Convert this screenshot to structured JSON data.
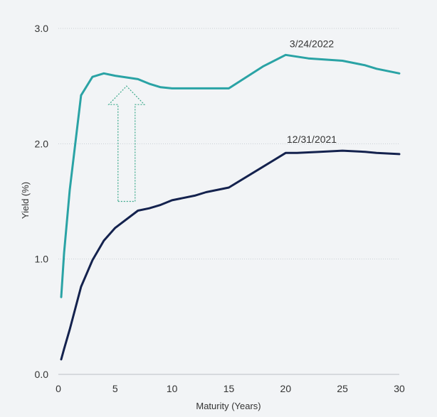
{
  "chart_data": {
    "type": "line",
    "title": "",
    "xlabel": "Maturity (Years)",
    "ylabel": "Yield (%)",
    "xlim": [
      0,
      30
    ],
    "ylim": [
      0,
      3
    ],
    "x_ticks": [
      "0",
      "5",
      "10",
      "15",
      "20",
      "25",
      "30"
    ],
    "y_ticks": [
      "0.0",
      "1.0",
      "2.0",
      "3.0"
    ],
    "grid": "horizontal-dotted",
    "legend": "inline-labels",
    "series": [
      {
        "name": "3/24/2022",
        "color": "#2aa3a5",
        "x": [
          0.25,
          0.5,
          1,
          2,
          3,
          4,
          5,
          7,
          8,
          9,
          10,
          12,
          15,
          18,
          20,
          22,
          25,
          27,
          28,
          30
        ],
        "values": [
          0.67,
          1.05,
          1.6,
          2.42,
          2.58,
          2.61,
          2.59,
          2.56,
          2.52,
          2.49,
          2.48,
          2.48,
          2.48,
          2.67,
          2.77,
          2.74,
          2.72,
          2.68,
          2.65,
          2.61
        ]
      },
      {
        "name": "12/31/2021",
        "color": "#14224e",
        "x": [
          0.25,
          0.5,
          1,
          2,
          3,
          4,
          5,
          7,
          8,
          9,
          10,
          12,
          13,
          15,
          18,
          20,
          21,
          23,
          25,
          27,
          28,
          30
        ],
        "values": [
          0.13,
          0.22,
          0.39,
          0.76,
          0.99,
          1.16,
          1.27,
          1.42,
          1.44,
          1.47,
          1.51,
          1.55,
          1.58,
          1.62,
          1.8,
          1.92,
          1.92,
          1.93,
          1.94,
          1.93,
          1.92,
          1.91
        ]
      }
    ],
    "annotations": [
      {
        "type": "arrow-up-outline",
        "color": "#3aa88a",
        "x": 6,
        "y_from": 1.5,
        "y_to": 2.5
      }
    ]
  }
}
